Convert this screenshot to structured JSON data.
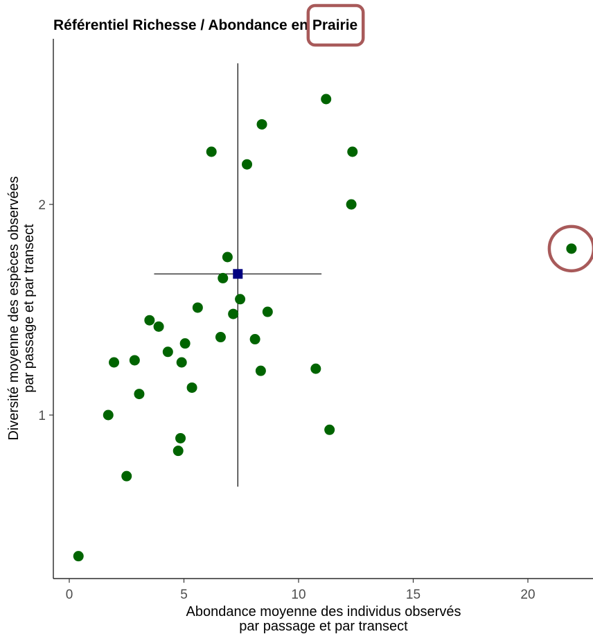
{
  "chart_data": {
    "type": "scatter",
    "title": "Référentiel Richesse / Abondance en Prairie",
    "title_highlight": "Prairie",
    "xlabel": [
      "Abondance moyenne des individus observés",
      "par passage et par transect"
    ],
    "ylabel": [
      "Diversité moyenne des espèces observées",
      "par passage et par transect"
    ],
    "xlim": [
      -0.7,
      22.9
    ],
    "ylim": [
      0.25,
      2.72
    ],
    "x_ticks": [
      0,
      5,
      10,
      15,
      20
    ],
    "y_ticks": [
      1,
      2
    ],
    "grid": false,
    "points": [
      {
        "x": 0.4,
        "y": 0.33
      },
      {
        "x": 1.7,
        "y": 1.0
      },
      {
        "x": 1.95,
        "y": 1.25
      },
      {
        "x": 2.5,
        "y": 0.71
      },
      {
        "x": 2.85,
        "y": 1.26
      },
      {
        "x": 3.05,
        "y": 1.1
      },
      {
        "x": 3.5,
        "y": 1.45
      },
      {
        "x": 3.9,
        "y": 1.42
      },
      {
        "x": 4.3,
        "y": 1.3
      },
      {
        "x": 4.75,
        "y": 0.83
      },
      {
        "x": 4.85,
        "y": 0.89
      },
      {
        "x": 4.9,
        "y": 1.25
      },
      {
        "x": 5.05,
        "y": 1.34
      },
      {
        "x": 5.35,
        "y": 1.13
      },
      {
        "x": 5.6,
        "y": 1.51
      },
      {
        "x": 6.2,
        "y": 2.25
      },
      {
        "x": 6.6,
        "y": 1.37
      },
      {
        "x": 6.7,
        "y": 1.65
      },
      {
        "x": 6.9,
        "y": 1.75
      },
      {
        "x": 7.15,
        "y": 1.48
      },
      {
        "x": 7.45,
        "y": 1.55
      },
      {
        "x": 7.75,
        "y": 2.19
      },
      {
        "x": 8.1,
        "y": 1.36
      },
      {
        "x": 8.35,
        "y": 1.21
      },
      {
        "x": 8.4,
        "y": 2.38
      },
      {
        "x": 8.65,
        "y": 1.49
      },
      {
        "x": 10.75,
        "y": 1.22
      },
      {
        "x": 11.2,
        "y": 2.5
      },
      {
        "x": 11.35,
        "y": 0.93
      },
      {
        "x": 12.3,
        "y": 2.0
      },
      {
        "x": 12.35,
        "y": 2.25
      },
      {
        "x": 21.9,
        "y": 1.79
      }
    ],
    "point_color": "#006400",
    "mean": {
      "x": 7.35,
      "y": 1.67
    },
    "mean_color": "#000080",
    "mean_hline": [
      3.7,
      11.0
    ],
    "mean_vline": [
      0.66,
      2.67
    ],
    "highlight_color": "#a85a5a",
    "outlier_highlight": {
      "x": 21.9,
      "y": 1.79
    }
  }
}
